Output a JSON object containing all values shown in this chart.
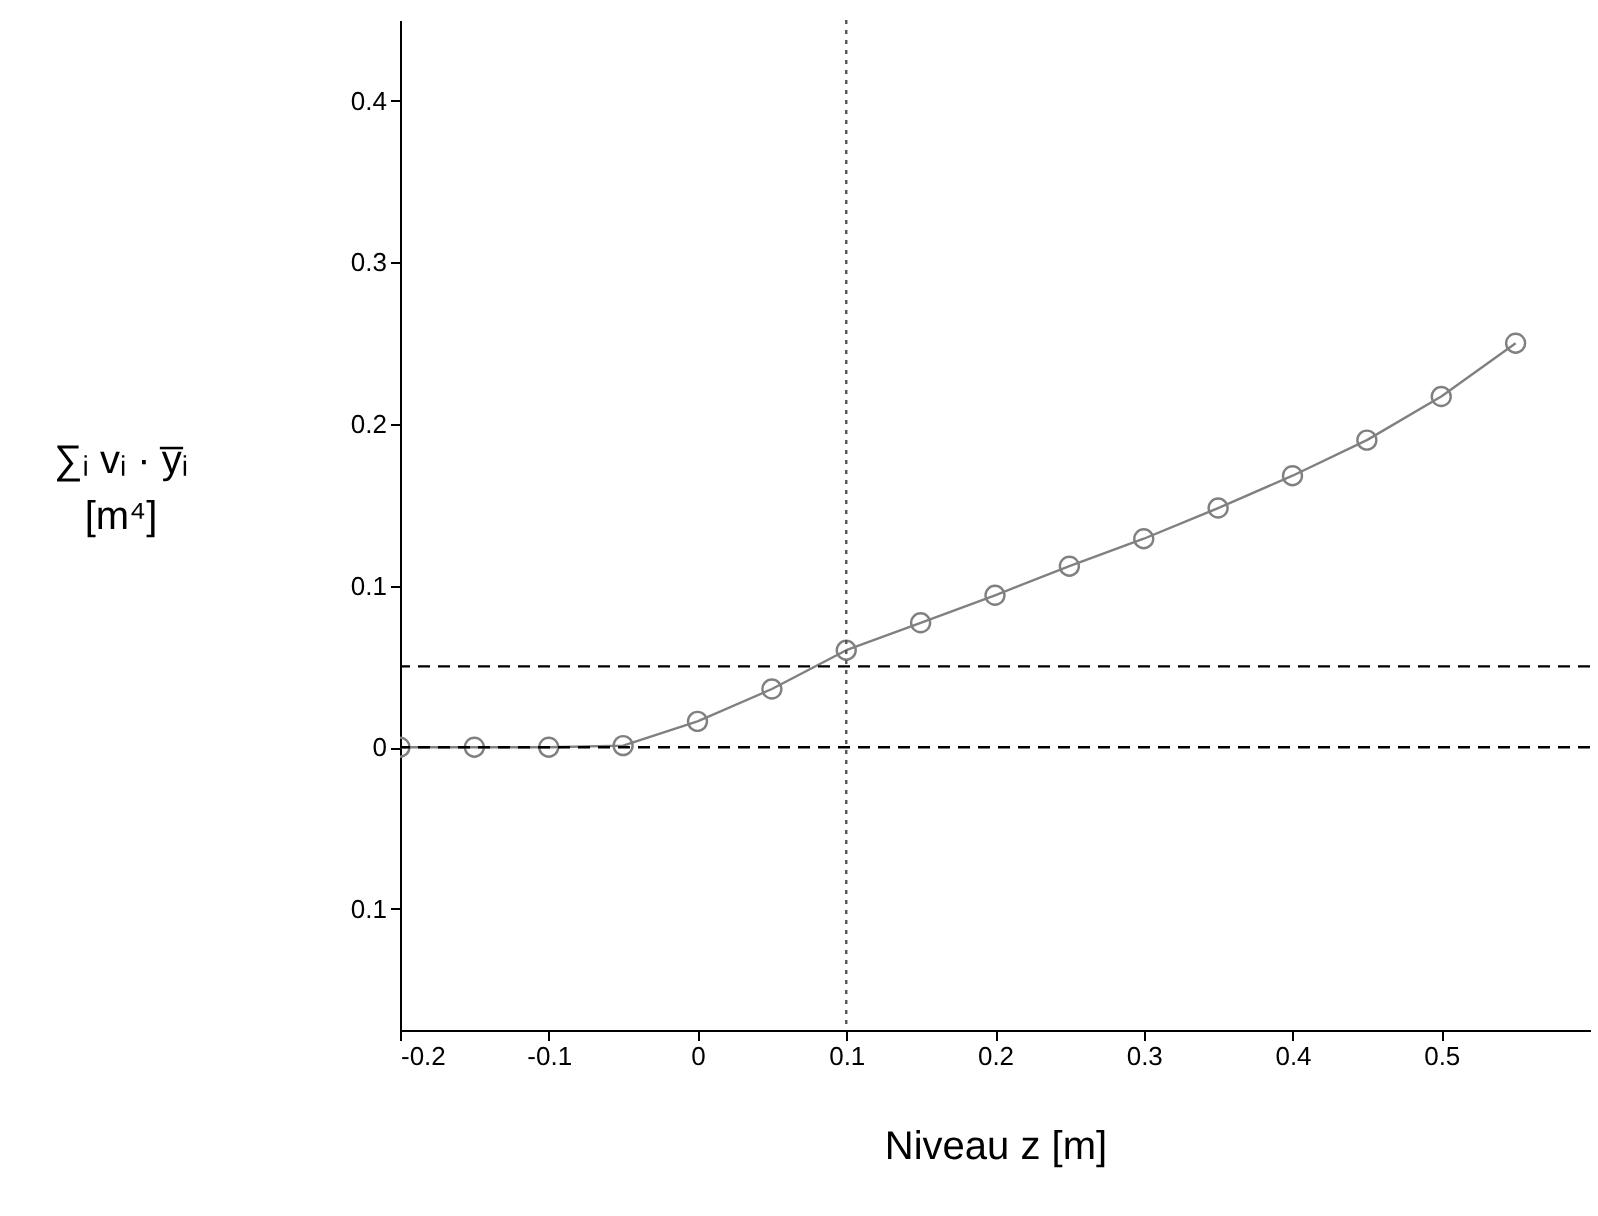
{
  "chart_data": {
    "type": "line",
    "xlabel": "Niveau z [m]",
    "ylabel": "∑ᵢ vᵢ · y̅ᵢ\n[m⁴]",
    "x": [
      -0.2,
      -0.15,
      -0.1,
      -0.05,
      0,
      0.05,
      0.1,
      0.15,
      0.2,
      0.25,
      0.3,
      0.35,
      0.4,
      0.45,
      0.5,
      0.55
    ],
    "series": [
      {
        "color": "#808080",
        "values": [
          0,
          0,
          0,
          0.001,
          0.016,
          0.036,
          0.06,
          0.077,
          0.094,
          0.112,
          0.129,
          0.148,
          0.168,
          0.19,
          0.217,
          0.25
        ]
      }
    ],
    "xlim": [
      -0.2,
      0.6
    ],
    "xticks": [
      -0.2,
      -0.1,
      0,
      0.1,
      0.2,
      0.3,
      0.4,
      0.5
    ],
    "ylim": [
      -0.175,
      0.45
    ],
    "yticks": [
      {
        "value": -0.1,
        "label": "0.1"
      },
      0,
      0.1,
      0.2,
      0.3,
      0.4
    ],
    "marker": "circle",
    "grid": false,
    "ref_lines": [
      {
        "axis": "y",
        "value": 0.05,
        "color": "#000000",
        "line_style": "dashed"
      },
      {
        "axis": "y",
        "value": 0,
        "color": "#000000",
        "line_style": "dashed"
      },
      {
        "axis": "x",
        "value": 0.1,
        "color": "#555555",
        "line_style": "dotted"
      }
    ]
  }
}
